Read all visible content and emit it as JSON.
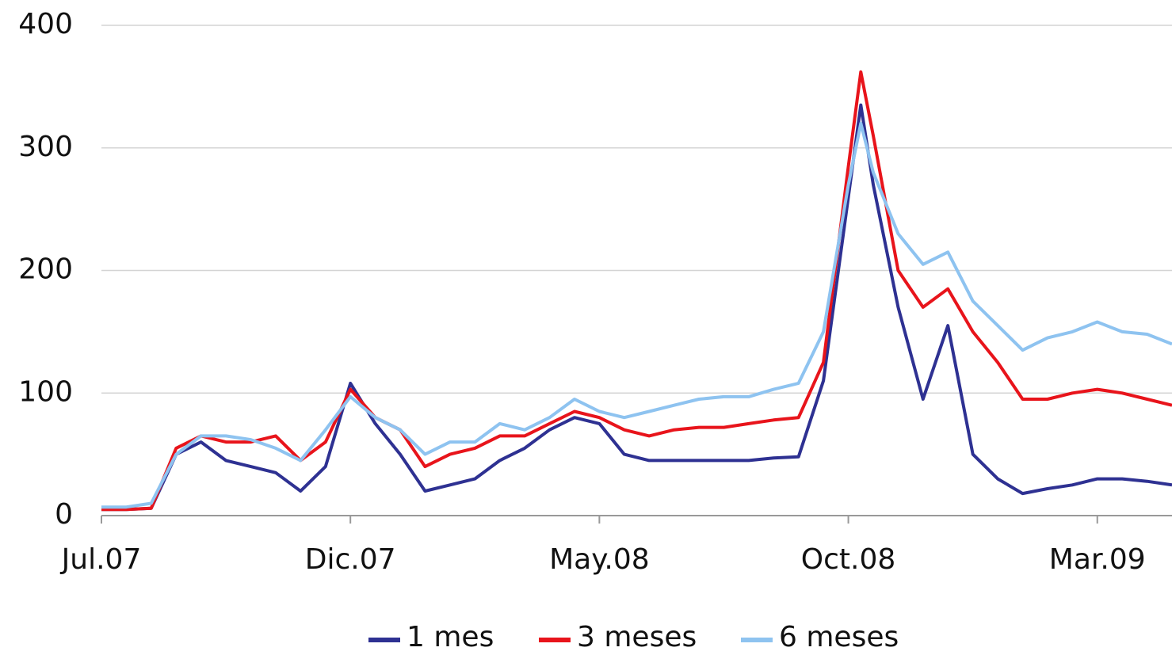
{
  "chart_data": {
    "type": "line",
    "x": [
      0,
      0.5,
      1,
      1.5,
      2,
      2.5,
      3,
      3.5,
      4,
      4.5,
      5,
      5.5,
      6,
      6.5,
      7,
      7.5,
      8,
      8.5,
      9,
      9.5,
      10,
      10.5,
      11,
      11.5,
      12,
      12.5,
      13,
      13.5,
      14,
      14.5,
      15,
      15.25,
      15.5,
      16,
      16.5,
      17,
      17.5,
      18,
      18.5,
      19,
      19.5,
      20,
      20.5,
      21,
      21.5
    ],
    "series": [
      {
        "name": "1 mes",
        "color": "#2e3192",
        "values": [
          5,
          5,
          6,
          50,
          60,
          45,
          40,
          35,
          20,
          40,
          108,
          75,
          50,
          20,
          25,
          30,
          45,
          55,
          70,
          80,
          75,
          50,
          45,
          45,
          45,
          45,
          45,
          47,
          48,
          110,
          260,
          335,
          270,
          170,
          95,
          155,
          50,
          30,
          18,
          22,
          25,
          30,
          30,
          28,
          25
        ]
      },
      {
        "name": "3 meses",
        "color": "#e8141b",
        "values": [
          5,
          5,
          6,
          55,
          65,
          60,
          60,
          65,
          45,
          60,
          103,
          80,
          70,
          40,
          50,
          55,
          65,
          65,
          75,
          85,
          80,
          70,
          65,
          70,
          72,
          72,
          75,
          78,
          80,
          125,
          285,
          362,
          310,
          200,
          170,
          185,
          150,
          125,
          95,
          95,
          100,
          103,
          100,
          95,
          90
        ]
      },
      {
        "name": "6 meses",
        "color": "#8ec3f0",
        "values": [
          7,
          7,
          10,
          50,
          65,
          65,
          62,
          55,
          45,
          70,
          97,
          80,
          70,
          50,
          60,
          60,
          75,
          70,
          80,
          95,
          85,
          80,
          85,
          90,
          95,
          97,
          97,
          103,
          108,
          150,
          270,
          320,
          280,
          230,
          205,
          215,
          175,
          155,
          135,
          145,
          150,
          158,
          150,
          148,
          140
        ]
      }
    ],
    "xlim": [
      0,
      21.5
    ],
    "xticks": [
      {
        "value": 0,
        "label": "Jul.07"
      },
      {
        "value": 5,
        "label": "Dic.07"
      },
      {
        "value": 10,
        "label": "May.08"
      },
      {
        "value": 15,
        "label": "Oct.08"
      },
      {
        "value": 20,
        "label": "Mar.09"
      }
    ],
    "ylim": [
      0,
      400
    ],
    "yticks": [
      0,
      100,
      200,
      300,
      400
    ],
    "grid": true
  }
}
